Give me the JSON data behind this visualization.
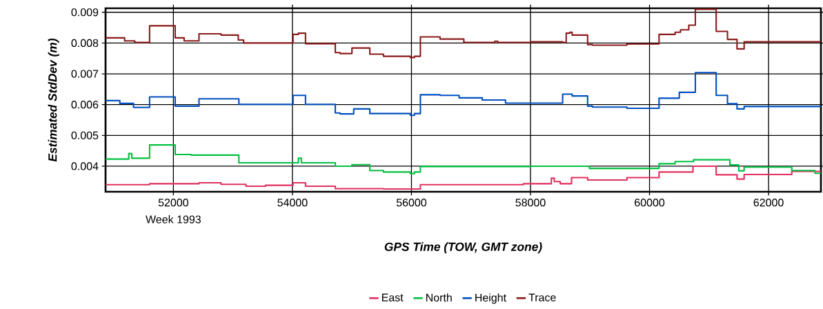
{
  "chart_data": {
    "type": "step",
    "xlabel": "GPS Time (TOW, GMT zone)",
    "ylabel": "Estimated StdDev (m)",
    "annotations": [
      "Week 1993"
    ],
    "xlim": [
      50860,
      62880
    ],
    "ylim": [
      0.00317,
      0.00913
    ],
    "xticks": [
      52000,
      54000,
      56000,
      58000,
      60000,
      62000
    ],
    "yticks": [
      0.004,
      0.005,
      0.006,
      0.007,
      0.008,
      0.009
    ],
    "grid": true,
    "legend": "bottom",
    "line_style": "solid",
    "marker": "none",
    "series": [
      {
        "name": "East",
        "color": "#e0305f",
        "x": [
          50860,
          51600,
          52430,
          52800,
          53220,
          53550,
          54010,
          54220,
          54720,
          55530,
          56150,
          57880,
          58350,
          58400,
          58500,
          58690,
          58960,
          59620,
          60160,
          60730,
          61120,
          61470,
          61590,
          62390,
          62880
        ],
        "values": [
          0.0034,
          0.00343,
          0.00346,
          0.00341,
          0.00335,
          0.00338,
          0.00346,
          0.00335,
          0.00327,
          0.00326,
          0.0034,
          0.00343,
          0.00361,
          0.0035,
          0.00343,
          0.00363,
          0.00355,
          0.00363,
          0.00381,
          0.004,
          0.00372,
          0.00358,
          0.00373,
          0.00383,
          0.00383
        ]
      },
      {
        "name": "North",
        "color": "#00c040",
        "x": [
          50860,
          51250,
          51300,
          51600,
          52030,
          52300,
          53100,
          54100,
          54150,
          54720,
          55000,
          55300,
          55530,
          55980,
          56050,
          56150,
          58000,
          58990,
          60160,
          60430,
          60740,
          61350,
          61500,
          61590,
          62390,
          62780,
          62880
        ],
        "values": [
          0.00423,
          0.00441,
          0.00426,
          0.00469,
          0.00438,
          0.00436,
          0.00411,
          0.00426,
          0.00411,
          0.004,
          0.00405,
          0.00386,
          0.00381,
          0.00376,
          0.00381,
          0.00399,
          0.004,
          0.00393,
          0.00408,
          0.00415,
          0.00421,
          0.00404,
          0.00385,
          0.00397,
          0.00386,
          0.00377,
          0.00377
        ]
      },
      {
        "name": "Height",
        "color": "#0050c0",
        "x": [
          50860,
          51100,
          51330,
          51600,
          52030,
          52430,
          53100,
          54010,
          54220,
          54720,
          54800,
          55030,
          55300,
          55980,
          56050,
          56150,
          56480,
          56800,
          57190,
          57580,
          58540,
          58700,
          58960,
          59040,
          59620,
          60160,
          60500,
          60770,
          61120,
          61310,
          61470,
          61590,
          62880
        ],
        "values": [
          0.00613,
          0.00604,
          0.00591,
          0.00625,
          0.00595,
          0.00619,
          0.00601,
          0.0063,
          0.00601,
          0.00573,
          0.0057,
          0.00586,
          0.00571,
          0.00565,
          0.00571,
          0.00632,
          0.0063,
          0.00622,
          0.00615,
          0.00605,
          0.00634,
          0.00628,
          0.00595,
          0.00592,
          0.00588,
          0.00621,
          0.0064,
          0.00704,
          0.0063,
          0.00603,
          0.00586,
          0.00594,
          0.00594
        ]
      },
      {
        "name": "Trace",
        "color": "#8b1a1a",
        "x": [
          50860,
          51180,
          51350,
          51600,
          52030,
          52180,
          52430,
          52800,
          53090,
          53180,
          54010,
          54100,
          54220,
          54720,
          54800,
          55000,
          55300,
          55530,
          55980,
          56050,
          56150,
          56480,
          56880,
          57400,
          57450,
          58000,
          58540,
          58600,
          58660,
          58700,
          58960,
          59040,
          59620,
          60160,
          60430,
          60520,
          60660,
          60770,
          61120,
          61310,
          61470,
          61590,
          62880
        ],
        "values": [
          0.00817,
          0.00807,
          0.00802,
          0.00856,
          0.00817,
          0.00807,
          0.0083,
          0.00826,
          0.0081,
          0.008,
          0.00828,
          0.00832,
          0.00798,
          0.00769,
          0.00766,
          0.00784,
          0.00764,
          0.00757,
          0.00753,
          0.00757,
          0.0082,
          0.00813,
          0.00802,
          0.00806,
          0.00802,
          0.00804,
          0.00802,
          0.00832,
          0.00835,
          0.00826,
          0.00795,
          0.00793,
          0.00797,
          0.00828,
          0.00835,
          0.00843,
          0.00858,
          0.0091,
          0.00838,
          0.00812,
          0.00781,
          0.00804,
          0.00804
        ]
      }
    ]
  }
}
